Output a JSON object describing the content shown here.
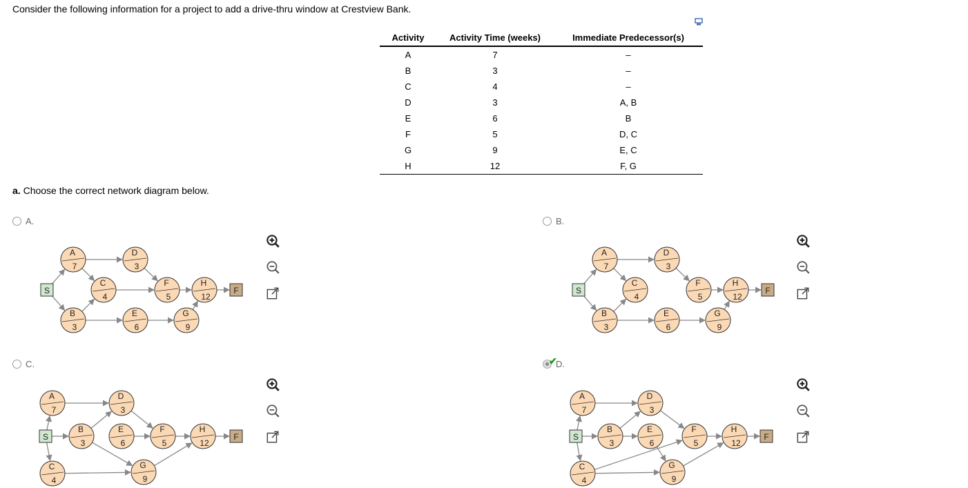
{
  "intro": "Consider the following information for a project to add a drive-thru window at Crestview Bank.",
  "table": {
    "headers": [
      "Activity",
      "Activity Time (weeks)",
      "Immediate Predecessor(s)"
    ],
    "rows": [
      [
        "A",
        "7",
        "–"
      ],
      [
        "B",
        "3",
        "–"
      ],
      [
        "C",
        "4",
        "–"
      ],
      [
        "D",
        "3",
        "A, B"
      ],
      [
        "E",
        "6",
        "B"
      ],
      [
        "F",
        "5",
        "D, C"
      ],
      [
        "G",
        "9",
        "E, C"
      ],
      [
        "H",
        "12",
        "F, G"
      ]
    ]
  },
  "question": {
    "part": "a.",
    "text": " Choose the correct network diagram below."
  },
  "options": [
    {
      "label": "A.",
      "selected": false,
      "correct": false
    },
    {
      "label": "B.",
      "selected": false,
      "correct": false
    },
    {
      "label": "C.",
      "selected": false,
      "correct": false
    },
    {
      "label": "D.",
      "selected": true,
      "correct": true
    }
  ],
  "icons": {
    "zoom_in": "zoom-in-icon",
    "zoom_out": "zoom-out-icon",
    "popout": "popout-icon",
    "copy": "copy-icon",
    "check": "checkmark-icon"
  },
  "colors": {
    "node_fill": "#fcd9b5",
    "start_fill": "#cfe8cf",
    "finish_fill": "#c9ab86",
    "edge": "#888888",
    "check": "#1a9a1a"
  },
  "diagrams": {
    "A": {
      "nodes": [
        {
          "id": "S",
          "kind": "start"
        },
        {
          "id": "A",
          "time": "7"
        },
        {
          "id": "B",
          "time": "3"
        },
        {
          "id": "C",
          "time": "4"
        },
        {
          "id": "D",
          "time": "3"
        },
        {
          "id": "E",
          "time": "6"
        },
        {
          "id": "F",
          "time": "5"
        },
        {
          "id": "G",
          "time": "9"
        },
        {
          "id": "H",
          "time": "12"
        },
        {
          "id": "F",
          "kind": "finish"
        }
      ],
      "edges": [
        [
          "S",
          "A"
        ],
        [
          "S",
          "B"
        ],
        [
          "A",
          "D"
        ],
        [
          "A",
          "C"
        ],
        [
          "B",
          "C"
        ],
        [
          "B",
          "E"
        ],
        [
          "C",
          "F"
        ],
        [
          "D",
          "F"
        ],
        [
          "E",
          "G"
        ],
        [
          "F",
          "H"
        ],
        [
          "G",
          "H"
        ],
        [
          "H",
          "FIN"
        ]
      ]
    },
    "B": {
      "nodes": [
        {
          "id": "S",
          "kind": "start"
        },
        {
          "id": "A",
          "time": "7"
        },
        {
          "id": "B",
          "time": "3"
        },
        {
          "id": "C",
          "time": "4"
        },
        {
          "id": "D",
          "time": "3"
        },
        {
          "id": "E",
          "time": "6"
        },
        {
          "id": "F",
          "time": "5"
        },
        {
          "id": "G",
          "time": "9"
        },
        {
          "id": "H",
          "time": "12"
        },
        {
          "id": "F",
          "kind": "finish"
        }
      ],
      "edges": [
        [
          "S",
          "A"
        ],
        [
          "S",
          "B"
        ],
        [
          "A",
          "D"
        ],
        [
          "A",
          "C"
        ],
        [
          "B",
          "C"
        ],
        [
          "B",
          "E"
        ],
        [
          "D",
          "F"
        ],
        [
          "E",
          "G"
        ],
        [
          "F",
          "H"
        ],
        [
          "G",
          "H"
        ],
        [
          "H",
          "FIN"
        ]
      ]
    },
    "C": {
      "nodes": [
        {
          "id": "S",
          "kind": "start"
        },
        {
          "id": "A",
          "time": "7"
        },
        {
          "id": "B",
          "time": "3"
        },
        {
          "id": "C",
          "time": "4"
        },
        {
          "id": "D",
          "time": "3"
        },
        {
          "id": "E",
          "time": "6"
        },
        {
          "id": "F",
          "time": "5"
        },
        {
          "id": "G",
          "time": "9"
        },
        {
          "id": "H",
          "time": "12"
        },
        {
          "id": "F",
          "kind": "finish"
        }
      ],
      "edges": [
        [
          "S",
          "A"
        ],
        [
          "S",
          "B"
        ],
        [
          "S",
          "C"
        ],
        [
          "A",
          "D"
        ],
        [
          "B",
          "D"
        ],
        [
          "B",
          "G"
        ],
        [
          "C",
          "G"
        ],
        [
          "E",
          "F"
        ],
        [
          "D",
          "F"
        ],
        [
          "F",
          "H"
        ],
        [
          "G",
          "H"
        ],
        [
          "H",
          "FIN"
        ]
      ]
    },
    "D": {
      "nodes": [
        {
          "id": "S",
          "kind": "start"
        },
        {
          "id": "A",
          "time": "7"
        },
        {
          "id": "B",
          "time": "3"
        },
        {
          "id": "C",
          "time": "4"
        },
        {
          "id": "D",
          "time": "3"
        },
        {
          "id": "E",
          "time": "6"
        },
        {
          "id": "F",
          "time": "5"
        },
        {
          "id": "G",
          "time": "9"
        },
        {
          "id": "H",
          "time": "12"
        },
        {
          "id": "F",
          "kind": "finish"
        }
      ],
      "edges": [
        [
          "S",
          "A"
        ],
        [
          "S",
          "B"
        ],
        [
          "S",
          "C"
        ],
        [
          "A",
          "D"
        ],
        [
          "B",
          "D"
        ],
        [
          "B",
          "E"
        ],
        [
          "C",
          "F"
        ],
        [
          "C",
          "G"
        ],
        [
          "D",
          "F"
        ],
        [
          "E",
          "G"
        ],
        [
          "F",
          "H"
        ],
        [
          "G",
          "H"
        ],
        [
          "H",
          "FIN"
        ]
      ]
    }
  }
}
